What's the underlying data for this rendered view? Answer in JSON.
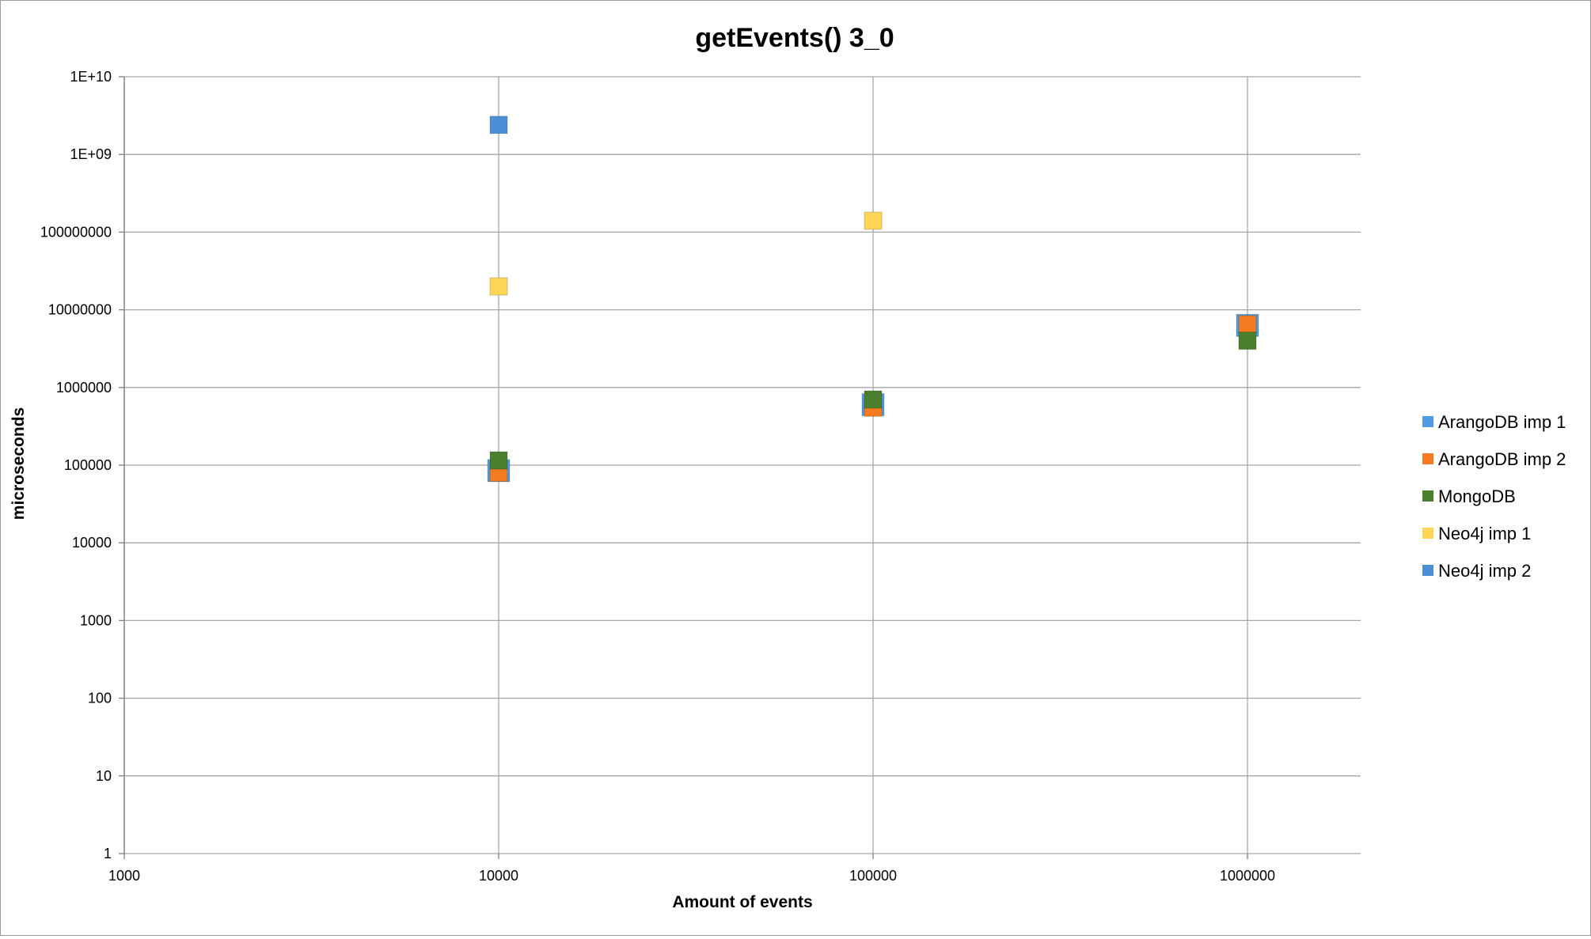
{
  "chart_data": {
    "type": "scatter",
    "title": "getEvents() 3_0",
    "xlabel": "Amount of events",
    "ylabel": "microseconds",
    "x_scale": "log",
    "y_scale": "log",
    "xlim": [
      1000,
      2000000
    ],
    "ylim": [
      1,
      10000000000
    ],
    "x_ticks": [
      1000,
      10000,
      100000,
      1000000
    ],
    "x_tick_labels": [
      "1000",
      "10000",
      "100000",
      "1000000"
    ],
    "y_ticks": [
      1,
      10,
      100,
      1000,
      10000,
      100000,
      1000000,
      10000000,
      100000000,
      1000000000,
      10000000000
    ],
    "y_tick_labels": [
      "1",
      "10",
      "100",
      "1000",
      "10000",
      "100000",
      "1000000",
      "10000000",
      "100000000",
      "1E+09",
      "1E+10"
    ],
    "grid": true,
    "legend_position": "right",
    "series": [
      {
        "name": "ArangoDB imp 1",
        "color": "#4f9de0",
        "marker": "square",
        "x": [
          10000,
          100000,
          1000000
        ],
        "y": [
          85000,
          600000,
          6300000
        ]
      },
      {
        "name": "ArangoDB imp 2",
        "color": "#f47b20",
        "marker": "square",
        "x": [
          10000,
          100000,
          1000000
        ],
        "y": [
          80000,
          550000,
          6500000
        ]
      },
      {
        "name": "MongoDB",
        "color": "#4a7f2e",
        "marker": "square",
        "x": [
          10000,
          100000,
          1000000
        ],
        "y": [
          115000,
          700000,
          4000000
        ]
      },
      {
        "name": "Neo4j imp 1",
        "color": "#ffd556",
        "marker": "square",
        "x": [
          10000,
          100000
        ],
        "y": [
          20000000,
          140000000
        ]
      },
      {
        "name": "Neo4j imp 2",
        "color": "#4d8fd6",
        "marker": "square",
        "x": [
          10000
        ],
        "y": [
          2400000000
        ]
      }
    ]
  }
}
